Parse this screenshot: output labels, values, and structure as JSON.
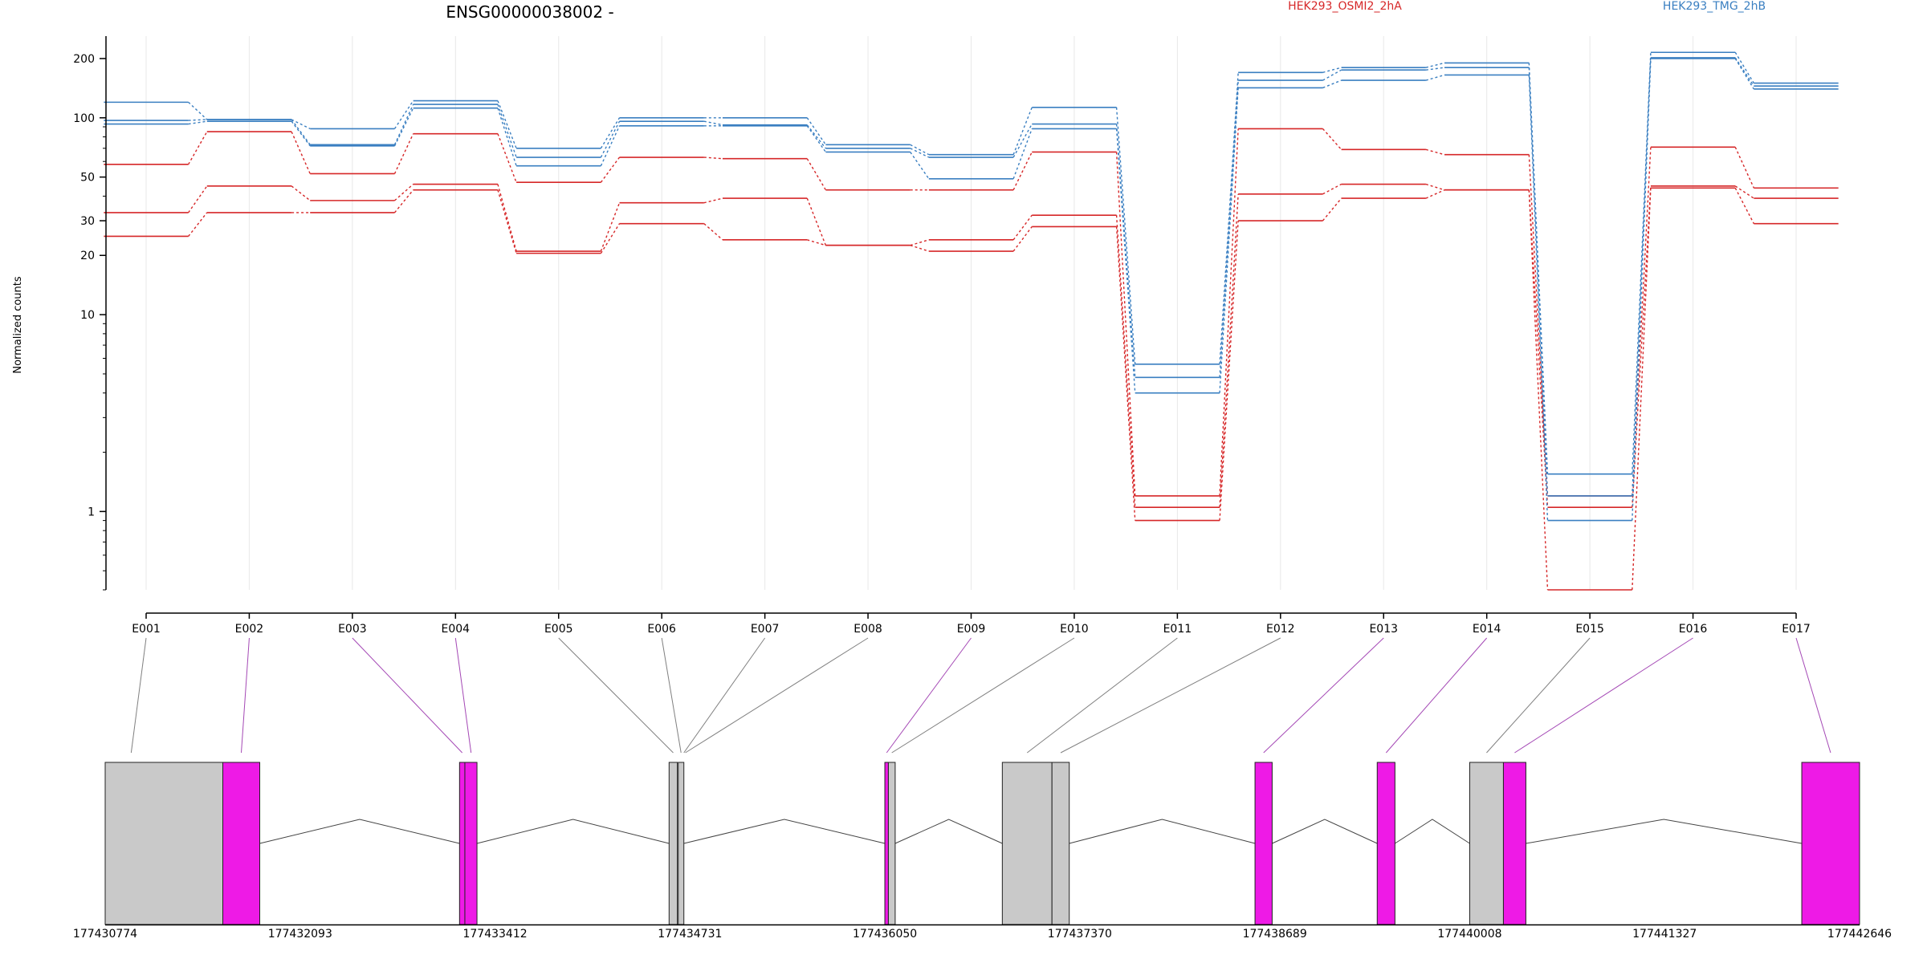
{
  "title": "ENSG00000038002 -",
  "colors": {
    "condition_a": "#d62728",
    "condition_b": "#3a7fc1",
    "exon_significant": "#ee1ae6",
    "exon_normal": "#c9c9c9",
    "axis": "#000000",
    "grid": "#e8e8e8",
    "connector_significant": "#a448b5",
    "connector_normal": "#808080"
  },
  "chart_data": {
    "type": "line",
    "ylabel": "Normalized counts",
    "yscale": "log",
    "ylim": [
      0.4,
      260
    ],
    "y_ticks": [
      1,
      10,
      20,
      30,
      50,
      100,
      200
    ],
    "categories": [
      "E001",
      "E002",
      "E003",
      "E004",
      "E005",
      "E006",
      "E007",
      "E008",
      "E009",
      "E010",
      "E011",
      "E012",
      "E013",
      "E014",
      "E015",
      "E016",
      "E017"
    ],
    "legend": [
      {
        "label": "HEK293_OSMI2_2hA",
        "color": "#d62728"
      },
      {
        "label": "HEK293_TMG_2hB",
        "color": "#3a7fc1"
      }
    ],
    "series": [
      {
        "group": "HEK293_OSMI2_2hA",
        "values": [
          58,
          85,
          52,
          83,
          47,
          63,
          62,
          43,
          43,
          67,
          1.2,
          88,
          69,
          65,
          1.2,
          71,
          44
        ]
      },
      {
        "group": "HEK293_OSMI2_2hA",
        "values": [
          33,
          45,
          38,
          46,
          21,
          37,
          39,
          22.5,
          24,
          32,
          1.05,
          41,
          46,
          43,
          1.05,
          45,
          39
        ]
      },
      {
        "group": "HEK293_OSMI2_2hA",
        "values": [
          25,
          33,
          33,
          43,
          20.5,
          29,
          24,
          22.5,
          21,
          28,
          0.9,
          30,
          39,
          43,
          0.4,
          44,
          29
        ]
      },
      {
        "group": "HEK293_TMG_2hB",
        "values": [
          120,
          98,
          88,
          122,
          70,
          100,
          100,
          73,
          65,
          113,
          5.6,
          170,
          180,
          190,
          1.55,
          215,
          150
        ]
      },
      {
        "group": "HEK293_TMG_2hB",
        "values": [
          97,
          98,
          73,
          117,
          63,
          96,
          92,
          70,
          63,
          93,
          4.8,
          155,
          175,
          180,
          1.2,
          202,
          145
        ]
      },
      {
        "group": "HEK293_TMG_2hB",
        "values": [
          93,
          96,
          72,
          112,
          57,
          91,
          91,
          67,
          49,
          88,
          4.0,
          142,
          155,
          165,
          0.9,
          200,
          140
        ]
      }
    ]
  },
  "gene_model": {
    "coord_min": 177430774,
    "coord_max": 177442646,
    "coord_ticks": [
      "177430774",
      "177432093",
      "177433412",
      "177434731",
      "177436050",
      "177437370",
      "177438689",
      "177440008",
      "177441327",
      "177442646"
    ],
    "exon_links": [
      {
        "exon": "E001",
        "significant": false
      },
      {
        "exon": "E002",
        "significant": true
      },
      {
        "exon": "E003",
        "significant": true
      },
      {
        "exon": "E004",
        "significant": true
      },
      {
        "exon": "E005",
        "significant": false
      },
      {
        "exon": "E006",
        "significant": false
      },
      {
        "exon": "E007",
        "significant": false
      },
      {
        "exon": "E008",
        "significant": false
      },
      {
        "exon": "E009",
        "significant": true
      },
      {
        "exon": "E010",
        "significant": false
      },
      {
        "exon": "E011",
        "significant": false
      },
      {
        "exon": "E012",
        "significant": false
      },
      {
        "exon": "E013",
        "significant": true
      },
      {
        "exon": "E014",
        "significant": true
      },
      {
        "exon": "E015",
        "significant": false
      },
      {
        "exon": "E016",
        "significant": true
      },
      {
        "exon": "E017",
        "significant": true
      }
    ]
  }
}
